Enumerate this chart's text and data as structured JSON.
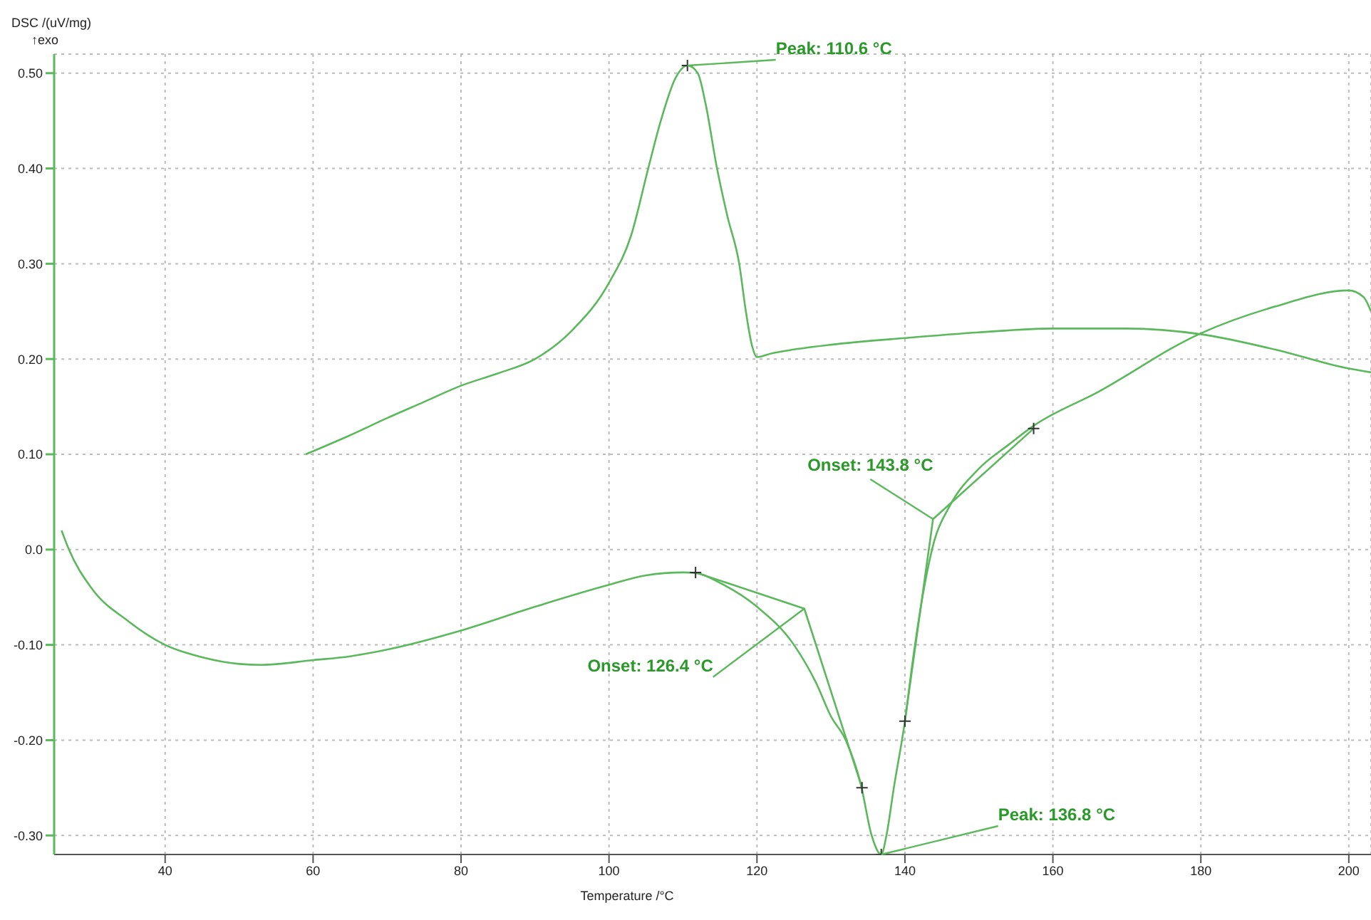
{
  "chart_data": {
    "type": "line",
    "ylabel": "DSC /(uV/mg)",
    "xlabel": "Temperature /°C",
    "annotations": [
      "↑exo",
      {
        "text": "Peak: 110.6 °C",
        "x": 110.6,
        "y": 0.508
      },
      {
        "text": "Peak: 136.8 °C",
        "x": 136.8,
        "y": -0.32
      },
      {
        "text": "Onset: 126.4 °C",
        "x": 126.4,
        "y": -0.062
      },
      {
        "text": "Onset: 143.8 °C",
        "x": 143.8,
        "y": 0.032
      }
    ],
    "xlim": [
      25,
      203
    ],
    "xticks": [
      40,
      60,
      80,
      100,
      120,
      140,
      160,
      180,
      200
    ],
    "ylim": [
      -0.32,
      0.52
    ],
    "yticks": [
      {
        "value": 0.5,
        "label": "0.50"
      },
      {
        "value": 0.4,
        "label": "0.40"
      },
      {
        "value": 0.3,
        "label": "0.30"
      },
      {
        "value": 0.2,
        "label": "0.20"
      },
      {
        "value": 0.1,
        "label": "0.10"
      },
      {
        "value": 0,
        "label": "0.0"
      },
      {
        "value": -0.1,
        "label": "-0.10"
      },
      {
        "value": -0.2,
        "label": "-0.20"
      },
      {
        "value": -0.3,
        "label": "-0.30"
      }
    ],
    "grid": true,
    "marker": "none",
    "line_style": "solid",
    "series": [
      {
        "color": "#5cb85c",
        "x": [
          59,
          65,
          70,
          75,
          80,
          85,
          90,
          95,
          100,
          103,
          105.3,
          107,
          109,
          110.6,
          112,
          113,
          114.6,
          116,
          117.6,
          118.5,
          119.3,
          120,
          122,
          125,
          130,
          140,
          150,
          160,
          170,
          180,
          190,
          200,
          203
        ],
        "values": [
          0.1,
          0.12,
          0.138,
          0.155,
          0.172,
          0.185,
          0.2,
          0.23,
          0.28,
          0.33,
          0.4,
          0.45,
          0.495,
          0.508,
          0.5,
          0.47,
          0.4,
          0.35,
          0.3,
          0.25,
          0.215,
          0.202,
          0.206,
          0.21,
          0.215,
          0.222,
          0.228,
          0.232,
          0.232,
          0.226,
          0.21,
          0.19,
          0.186
        ]
      },
      {
        "color": "#5cb85c",
        "x": [
          26,
          27,
          30,
          35,
          40,
          45,
          50,
          53,
          60,
          65,
          70,
          80,
          90,
          100,
          105,
          110,
          112,
          115,
          120,
          125,
          128,
          130,
          132,
          134,
          135.5,
          136.8,
          137.5,
          138.5,
          140,
          141,
          142.5,
          144,
          146,
          150,
          154,
          157.4,
          166,
          180,
          190,
          200,
          202,
          203
        ],
        "values": [
          0.02,
          0.0,
          -0.04,
          -0.075,
          -0.1,
          -0.113,
          -0.12,
          -0.121,
          -0.116,
          -0.112,
          -0.105,
          -0.085,
          -0.06,
          -0.037,
          -0.027,
          -0.024,
          -0.025,
          -0.035,
          -0.06,
          -0.1,
          -0.14,
          -0.175,
          -0.2,
          -0.245,
          -0.3,
          -0.32,
          -0.3,
          -0.25,
          -0.18,
          -0.12,
          -0.044,
          0.01,
          0.045,
          0.085,
          0.11,
          0.13,
          0.165,
          0.227,
          0.255,
          0.272,
          0.265,
          0.25
        ]
      },
      {
        "color": "#5cb85c",
        "x": [
          111.7,
          126.4,
          134.2
        ],
        "values": [
          -0.024,
          -0.062,
          -0.25
        ]
      },
      {
        "color": "#5cb85c",
        "x": [
          140,
          143.8,
          157.4
        ],
        "values": [
          -0.18,
          0.032,
          0.127
        ]
      },
      {
        "type": "scatter",
        "color": "#333333",
        "marker": "cross",
        "x": [
          110.6,
          111.7,
          134.2,
          136.8,
          140,
          157.4
        ],
        "values": [
          0.508,
          -0.024,
          -0.25,
          -0.32,
          -0.18,
          0.127
        ]
      }
    ]
  }
}
